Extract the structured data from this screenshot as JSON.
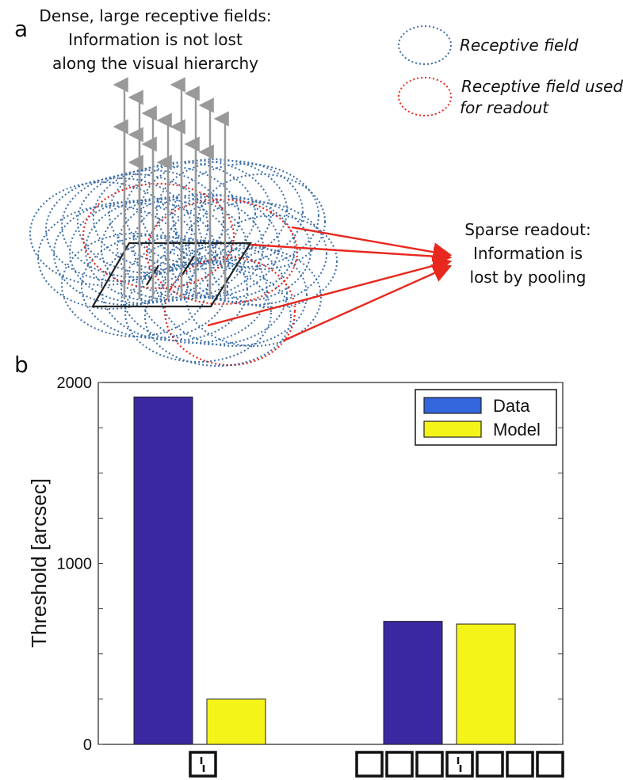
{
  "panel_a": {
    "letter": "a",
    "top_caption": [
      "Dense, large receptive fields:",
      "Information is not lost",
      "along the visual hierarchy"
    ],
    "legend": {
      "receptive_field": "Receptive field",
      "readout_line1": "Receptive field used",
      "readout_line2": "for readout"
    },
    "readout_caption": [
      "Sparse readout:",
      "Information is",
      "lost by pooling"
    ],
    "colors": {
      "rf_blue": "#3c6fa8",
      "rf_red": "#e8281e",
      "arrow_gray": "#999999",
      "readout_arrow": "#e8281e"
    }
  },
  "panel_b": {
    "letter": "b"
  },
  "chart_data": {
    "type": "bar",
    "categories": [
      "single vernier",
      "vernier flanked by squares"
    ],
    "series": [
      {
        "name": "Data",
        "values": [
          1920,
          680
        ],
        "color": "#3a28a0"
      },
      {
        "name": "Model",
        "values": [
          250,
          665
        ],
        "color": "#f4f419"
      }
    ],
    "ylabel": "Threshold [arcsec]",
    "yticks": [
      0,
      1000,
      2000
    ],
    "ylim": [
      0,
      2000
    ],
    "legend_position": "top-right",
    "grid": false
  }
}
